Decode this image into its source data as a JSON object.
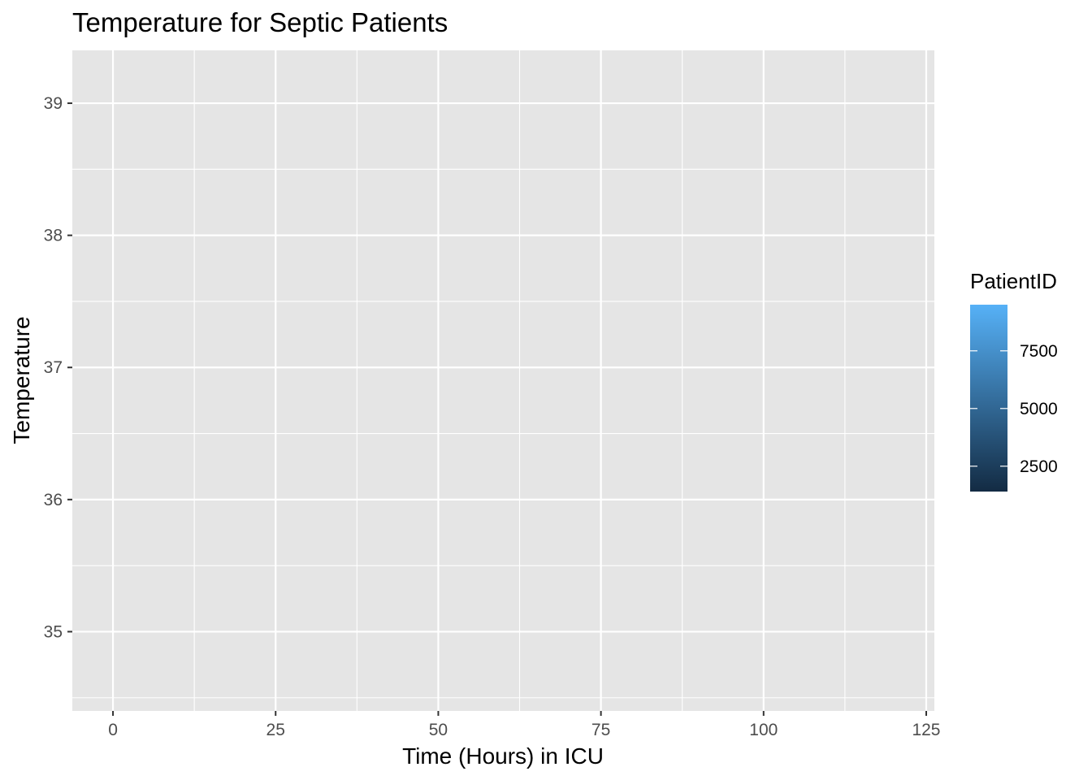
{
  "chart_data": {
    "type": "line",
    "title": "Temperature for Septic Patients",
    "xlabel": "Time (Hours) in ICU",
    "ylabel": "Temperature",
    "xlim": [
      -6.25,
      126.25
    ],
    "ylim": [
      34.4,
      39.4
    ],
    "x_ticks": [
      0,
      25,
      50,
      75,
      100,
      125
    ],
    "x_tick_labels": [
      "0",
      "25",
      "50",
      "75",
      "100",
      "125"
    ],
    "y_ticks": [
      35,
      36,
      37,
      38,
      39
    ],
    "y_tick_labels": [
      "35",
      "36",
      "37",
      "38",
      "39"
    ],
    "grid": true,
    "series": [],
    "legend": {
      "title": "PatientID",
      "type": "colorbar",
      "placement": "right",
      "range": [
        1400,
        9500
      ],
      "breaks": [
        2500,
        5000,
        7500
      ],
      "break_labels": [
        "2500",
        "5000",
        "7500"
      ],
      "low_color": "#132B43",
      "high_color": "#56B1F7"
    }
  },
  "colors": {
    "panel_background": "#e5e5e5",
    "grid_major": "#ffffff",
    "tick_text": "#4d4d4d",
    "tick_mark": "#333333"
  }
}
